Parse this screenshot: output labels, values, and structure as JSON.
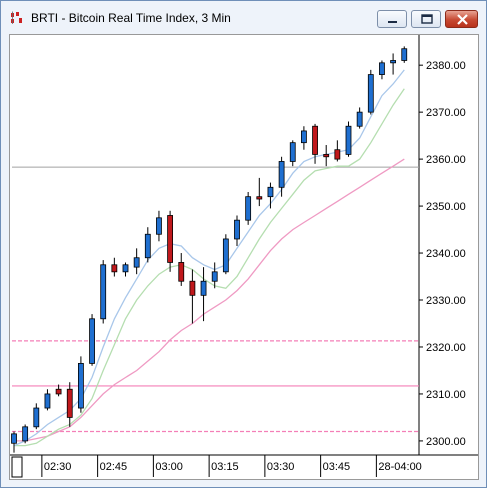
{
  "window": {
    "title": "BRTI - Bitcoin Real Time Index, 3 Min",
    "icons": {
      "app": "chart-app-icon",
      "minimize": "minimize-icon",
      "maximize": "maximize-icon",
      "close": "close-icon"
    }
  },
  "colors": {
    "up_candle": "#1f6fd0",
    "down_candle": "#c0181c",
    "ma_fast": "#a9c7ea",
    "ma_mid": "#b5deb0",
    "ma_slow": "#ef9ac3",
    "hline_pink": "#f47fb7",
    "hline_gray": "#a0a0a0"
  },
  "chart_data": {
    "type": "candlestick",
    "title": "",
    "ylim": [
      2297,
      2386
    ],
    "y_ticks": [
      2300,
      2310,
      2320,
      2330,
      2340,
      2350,
      2360,
      2370,
      2380
    ],
    "y_tick_labels": [
      "2300.00",
      "2310.00",
      "2320.00",
      "2330.00",
      "2340.00",
      "2350.00",
      "2360.00",
      "2370.00",
      "2380.00"
    ],
    "x_tick_labels": [
      "02:30",
      "02:45",
      "03:00",
      "03:15",
      "03:30",
      "03:45",
      "28-04:00"
    ],
    "x_tick_bar_index": [
      2.5,
      7.5,
      12.5,
      17.5,
      22.5,
      27.5,
      32.5
    ],
    "candles": [
      {
        "o": 2299.5,
        "h": 2302.0,
        "l": 2297.5,
        "c": 2301.5
      },
      {
        "o": 2300.0,
        "h": 2303.5,
        "l": 2299.5,
        "c": 2303.0
      },
      {
        "o": 2303.0,
        "h": 2308.0,
        "l": 2302.5,
        "c": 2307.0
      },
      {
        "o": 2307.0,
        "h": 2311.0,
        "l": 2306.5,
        "c": 2310.0
      },
      {
        "o": 2311.0,
        "h": 2312.0,
        "l": 2309.5,
        "c": 2310.0
      },
      {
        "o": 2311.0,
        "h": 2312.5,
        "l": 2303.0,
        "c": 2305.0
      },
      {
        "o": 2307.0,
        "h": 2318.0,
        "l": 2306.0,
        "c": 2316.5
      },
      {
        "o": 2316.5,
        "h": 2327.0,
        "l": 2316.0,
        "c": 2326.0
      },
      {
        "o": 2326.0,
        "h": 2338.5,
        "l": 2325.0,
        "c": 2337.5
      },
      {
        "o": 2337.5,
        "h": 2339.0,
        "l": 2335.0,
        "c": 2336.0
      },
      {
        "o": 2336.0,
        "h": 2338.0,
        "l": 2335.0,
        "c": 2337.5
      },
      {
        "o": 2337.0,
        "h": 2341.0,
        "l": 2335.5,
        "c": 2339.0
      },
      {
        "o": 2339.0,
        "h": 2345.5,
        "l": 2338.0,
        "c": 2344.0
      },
      {
        "o": 2344.0,
        "h": 2349.0,
        "l": 2342.5,
        "c": 2347.5
      },
      {
        "o": 2348.0,
        "h": 2349.0,
        "l": 2336.0,
        "c": 2338.0
      },
      {
        "o": 2338.0,
        "h": 2340.0,
        "l": 2333.0,
        "c": 2334.0
      },
      {
        "o": 2334.0,
        "h": 2336.5,
        "l": 2325.0,
        "c": 2331.0
      },
      {
        "o": 2331.0,
        "h": 2337.0,
        "l": 2325.5,
        "c": 2334.0
      },
      {
        "o": 2334.0,
        "h": 2338.0,
        "l": 2332.5,
        "c": 2336.0
      },
      {
        "o": 2336.0,
        "h": 2344.0,
        "l": 2335.5,
        "c": 2343.0
      },
      {
        "o": 2343.0,
        "h": 2348.0,
        "l": 2341.5,
        "c": 2347.0
      },
      {
        "o": 2347.0,
        "h": 2353.0,
        "l": 2346.0,
        "c": 2352.0
      },
      {
        "o": 2352.0,
        "h": 2356.0,
        "l": 2350.0,
        "c": 2351.5
      },
      {
        "o": 2352.0,
        "h": 2355.0,
        "l": 2349.5,
        "c": 2354.0
      },
      {
        "o": 2354.0,
        "h": 2360.5,
        "l": 2352.0,
        "c": 2359.5
      },
      {
        "o": 2359.5,
        "h": 2364.0,
        "l": 2358.5,
        "c": 2363.5
      },
      {
        "o": 2363.5,
        "h": 2367.0,
        "l": 2362.0,
        "c": 2366.0
      },
      {
        "o": 2367.0,
        "h": 2367.5,
        "l": 2359.0,
        "c": 2361.0
      },
      {
        "o": 2361.0,
        "h": 2363.0,
        "l": 2358.5,
        "c": 2360.5
      },
      {
        "o": 2362.0,
        "h": 2364.0,
        "l": 2359.5,
        "c": 2360.0
      },
      {
        "o": 2361.0,
        "h": 2368.0,
        "l": 2360.5,
        "c": 2367.0
      },
      {
        "o": 2367.0,
        "h": 2371.0,
        "l": 2366.5,
        "c": 2370.0
      },
      {
        "o": 2370.0,
        "h": 2379.0,
        "l": 2369.5,
        "c": 2378.0
      },
      {
        "o": 2378.0,
        "h": 2381.0,
        "l": 2377.0,
        "c": 2380.5
      },
      {
        "o": 2380.5,
        "h": 2382.5,
        "l": 2378.0,
        "c": 2381.0
      },
      {
        "o": 2381.0,
        "h": 2384.0,
        "l": 2380.5,
        "c": 2383.5
      }
    ],
    "ma_fast": [
      2299.0,
      2300.0,
      2301.5,
      2303.5,
      2305.0,
      2306.5,
      2309.0,
      2313.5,
      2320.0,
      2326.0,
      2330.5,
      2334.5,
      2338.5,
      2341.0,
      2342.0,
      2341.5,
      2339.0,
      2337.5,
      2336.5,
      2337.5,
      2341.0,
      2344.5,
      2348.0,
      2350.5,
      2353.5,
      2357.0,
      2359.5,
      2360.5,
      2361.0,
      2361.5,
      2362.0,
      2364.5,
      2369.0,
      2373.5,
      2376.0,
      2379.0
    ],
    "ma_mid": [
      2299.0,
      2299.0,
      2299.5,
      2301.0,
      2302.5,
      2303.5,
      2305.5,
      2309.0,
      2315.0,
      2320.5,
      2326.0,
      2330.0,
      2333.0,
      2335.5,
      2337.0,
      2337.5,
      2336.5,
      2334.5,
      2333.0,
      2332.5,
      2335.0,
      2339.0,
      2343.0,
      2346.5,
      2349.5,
      2352.5,
      2355.5,
      2357.5,
      2358.0,
      2358.5,
      2358.5,
      2360.0,
      2363.5,
      2367.5,
      2371.5,
      2375.0
    ],
    "ma_slow": [
      2300.0,
      2300.0,
      2300.5,
      2301.0,
      2302.0,
      2303.0,
      2305.0,
      2307.5,
      2310.0,
      2312.0,
      2313.5,
      2315.0,
      2317.0,
      2319.0,
      2321.5,
      2323.5,
      2325.0,
      2327.0,
      2328.5,
      2330.0,
      2332.0,
      2334.5,
      2337.5,
      2340.5,
      2343.0,
      2345.0,
      2346.5,
      2348.0,
      2349.5,
      2351.0,
      2352.5,
      2354.0,
      2355.5,
      2357.0,
      2358.5,
      2360.0
    ],
    "hlines": [
      {
        "value": 2358.3,
        "style": "solid",
        "color": "gray"
      },
      {
        "value": 2321.3,
        "style": "dashed",
        "color": "pink"
      },
      {
        "value": 2311.7,
        "style": "solid",
        "color": "pink"
      },
      {
        "value": 2302.0,
        "style": "dashed",
        "color": "pink"
      }
    ],
    "grid": false
  }
}
